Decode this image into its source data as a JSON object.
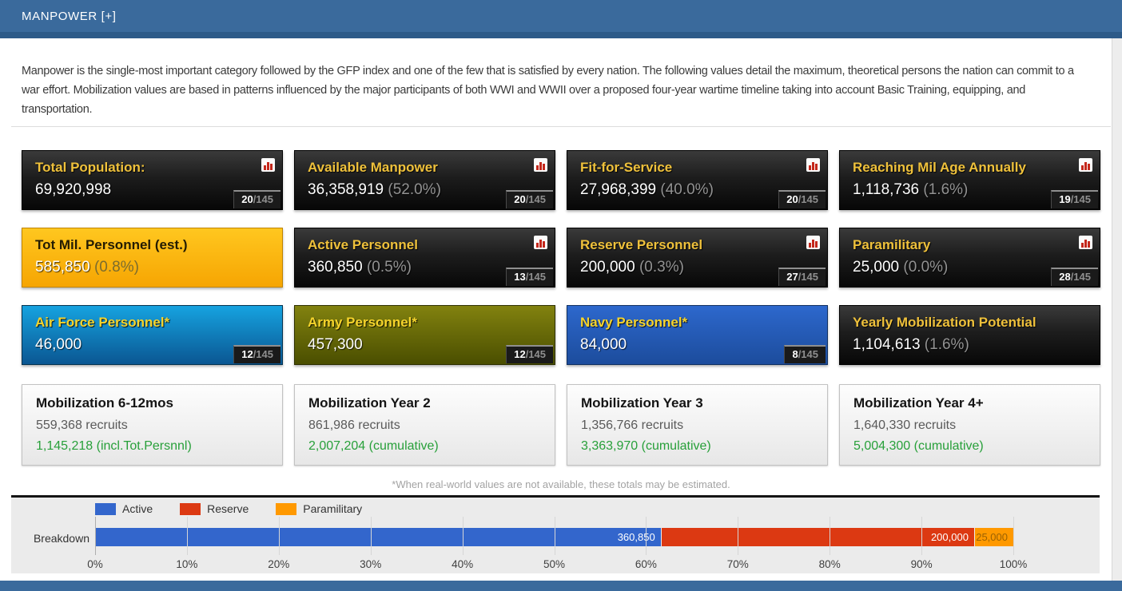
{
  "header": {
    "title": "MANPOWER [+]"
  },
  "intro": "Manpower is the single-most important category followed by the GFP index and one of the few that is satisfied by every nation. The following values detail the maximum, theoretical persons the nation can commit to a war effort. Mobilization values are based in patterns influenced by the major participants of both WWI and WWII over a proposed four-year wartime timeline taking into account Basic Training, equipping, and transportation.",
  "cards": [
    {
      "title": "Total Population:",
      "value": "69,920,998",
      "pct": "",
      "rank": "20",
      "rank_total": "145",
      "theme": "dark",
      "icon": true
    },
    {
      "title": "Available Manpower",
      "value": "36,358,919",
      "pct": "(52.0%)",
      "rank": "20",
      "rank_total": "145",
      "theme": "dark",
      "icon": true
    },
    {
      "title": "Fit-for-Service",
      "value": "27,968,399",
      "pct": "(40.0%)",
      "rank": "20",
      "rank_total": "145",
      "theme": "dark",
      "icon": true
    },
    {
      "title": "Reaching Mil Age Annually",
      "value": "1,118,736",
      "pct": "(1.6%)",
      "rank": "19",
      "rank_total": "145",
      "theme": "dark",
      "icon": true
    },
    {
      "title": "Tot Mil. Personnel (est.)",
      "value": "585,850",
      "pct": "(0.8%)",
      "rank": null,
      "rank_total": "145",
      "theme": "amber",
      "icon": false
    },
    {
      "title": "Active Personnel",
      "value": "360,850",
      "pct": "(0.5%)",
      "rank": "13",
      "rank_total": "145",
      "theme": "dark",
      "icon": true
    },
    {
      "title": "Reserve Personnel",
      "value": "200,000",
      "pct": "(0.3%)",
      "rank": "27",
      "rank_total": "145",
      "theme": "dark",
      "icon": true
    },
    {
      "title": "Paramilitary",
      "value": "25,000",
      "pct": "(0.0%)",
      "rank": "28",
      "rank_total": "145",
      "theme": "dark",
      "icon": true
    },
    {
      "title": "Air Force Personnel*",
      "value": "46,000",
      "pct": "",
      "rank": "12",
      "rank_total": "145",
      "theme": "airforce",
      "icon": false
    },
    {
      "title": "Army Personnel*",
      "value": "457,300",
      "pct": "",
      "rank": "12",
      "rank_total": "145",
      "theme": "army",
      "icon": false
    },
    {
      "title": "Navy Personnel*",
      "value": "84,000",
      "pct": "",
      "rank": "8",
      "rank_total": "145",
      "theme": "navy",
      "icon": false
    },
    {
      "title": "Yearly Mobilization Potential",
      "value": "1,104,613",
      "pct": "(1.6%)",
      "rank": null,
      "rank_total": "145",
      "theme": "dark",
      "icon": false
    }
  ],
  "mobilization_cards": [
    {
      "title": "Mobilization 6-12mos",
      "recruits": "559,368 recruits",
      "cumulative": "1,145,218 (incl.Tot.Persnnl)"
    },
    {
      "title": "Mobilization Year 2",
      "recruits": "861,986 recruits",
      "cumulative": "2,007,204 (cumulative)"
    },
    {
      "title": "Mobilization Year 3",
      "recruits": "1,356,766 recruits",
      "cumulative": "3,363,970 (cumulative)"
    },
    {
      "title": "Mobilization Year 4+",
      "recruits": "1,640,330 recruits",
      "cumulative": "5,004,300 (cumulative)"
    }
  ],
  "footnote": "*When real-world values are not available, these totals may be estimated.",
  "chart_data": {
    "type": "bar",
    "orientation": "horizontal",
    "stacked": true,
    "category_label": "Breakdown",
    "categories": [
      "Breakdown"
    ],
    "series": [
      {
        "name": "Active",
        "value": 360850,
        "label": "360,850",
        "color": "#3366cc",
        "label_color": "#ffffff"
      },
      {
        "name": "Reserve",
        "value": 200000,
        "label": "200,000",
        "color": "#dc3912",
        "label_color": "#ffffff"
      },
      {
        "name": "Paramilitary",
        "value": 25000,
        "label": "25,000",
        "color": "#ff9900",
        "label_color": "#9a6203"
      }
    ],
    "x_ticks": [
      "0%",
      "10%",
      "20%",
      "30%",
      "40%",
      "50%",
      "60%",
      "70%",
      "80%",
      "90%",
      "100%"
    ],
    "xlim": [
      0,
      100
    ],
    "legend_position": "top",
    "grid": true
  },
  "colors": {
    "header_blue": "#3a6a9c",
    "header_blue_dark": "#2d5a88",
    "card_gold": "#efc13b",
    "green": "#28a03a"
  }
}
